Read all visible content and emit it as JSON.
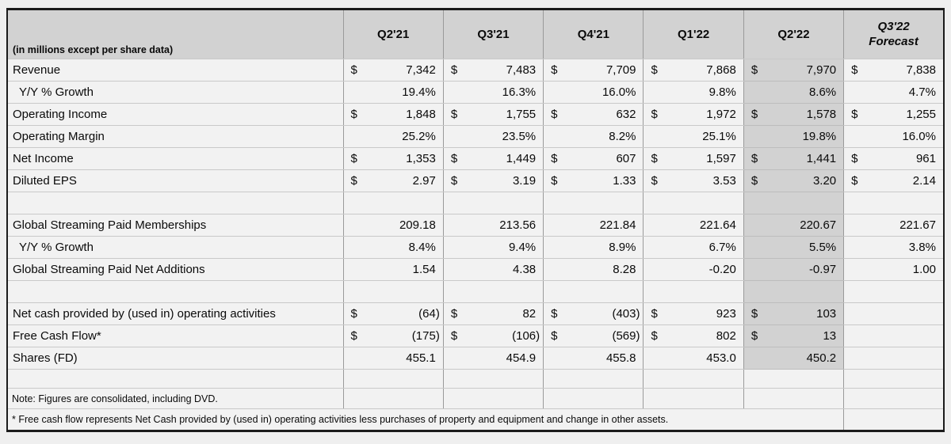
{
  "colors": {
    "page_bg": "#efefef",
    "cell_bg": "#f2f2f2",
    "header_bg": "#d2d2d2",
    "highlight_column_bg": "#d2d2d2",
    "outer_border": "#1b1b1b",
    "text": "#0a0a0a"
  },
  "table": {
    "unit_note": "(in millions except per share data)",
    "currency_symbol": "$",
    "highlight_column": "Q2'22",
    "columns": [
      {
        "label": "Q2'21"
      },
      {
        "label": "Q3'21"
      },
      {
        "label": "Q4'21"
      },
      {
        "label": "Q1'22"
      },
      {
        "label": "Q2'22"
      },
      {
        "label": "Q3'22",
        "sublabel": "Forecast"
      }
    ],
    "rows": [
      {
        "type": "data",
        "label": "Revenue",
        "dollar": true,
        "shaded": true,
        "values": [
          "7,342",
          "7,483",
          "7,709",
          "7,868",
          "7,970",
          "7,838"
        ]
      },
      {
        "type": "data",
        "label": "Y/Y % Growth",
        "indent": true,
        "shaded": true,
        "values": [
          "19.4%",
          "16.3%",
          "16.0%",
          "9.8%",
          "8.6%",
          "4.7%"
        ]
      },
      {
        "type": "data",
        "label": "Operating Income",
        "dollar": true,
        "shaded": true,
        "values": [
          "1,848",
          "1,755",
          "632",
          "1,972",
          "1,578",
          "1,255"
        ]
      },
      {
        "type": "data",
        "label": "Operating Margin",
        "shaded": true,
        "values": [
          "25.2%",
          "23.5%",
          "8.2%",
          "25.1%",
          "19.8%",
          "16.0%"
        ]
      },
      {
        "type": "data",
        "label": "Net Income",
        "dollar": true,
        "shaded": true,
        "values": [
          "1,353",
          "1,449",
          "607",
          "1,597",
          "1,441",
          "961"
        ]
      },
      {
        "type": "data",
        "label": "Diluted EPS",
        "dollar": true,
        "shaded": true,
        "values": [
          "2.97",
          "3.19",
          "1.33",
          "3.53",
          "3.20",
          "2.14"
        ]
      },
      {
        "type": "blank",
        "shaded": true
      },
      {
        "type": "data",
        "label": "Global Streaming Paid Memberships",
        "shaded": true,
        "values": [
          "209.18",
          "213.56",
          "221.84",
          "221.64",
          "220.67",
          "221.67"
        ]
      },
      {
        "type": "data",
        "label": "Y/Y % Growth",
        "indent": true,
        "shaded": true,
        "values": [
          "8.4%",
          "9.4%",
          "8.9%",
          "6.7%",
          "5.5%",
          "3.8%"
        ]
      },
      {
        "type": "data",
        "label": "Global Streaming Paid Net Additions",
        "shaded": true,
        "values": [
          "1.54",
          "4.38",
          "8.28",
          "-0.20",
          "-0.97",
          "1.00"
        ]
      },
      {
        "type": "blank",
        "shaded": true
      },
      {
        "type": "data",
        "label": "Net cash provided by (used in) operating activities",
        "dollar": true,
        "shaded": true,
        "values": [
          "(64)",
          "82",
          "(403)",
          "923",
          "103",
          ""
        ]
      },
      {
        "type": "data",
        "label": "Free Cash Flow*",
        "dollar": true,
        "shaded": true,
        "values": [
          "(175)",
          "(106)",
          "(569)",
          "802",
          "13",
          ""
        ]
      },
      {
        "type": "data",
        "label": "Shares (FD)",
        "shaded": true,
        "values": [
          "455.1",
          "454.9",
          "455.8",
          "453.0",
          "450.2",
          ""
        ]
      },
      {
        "type": "blank",
        "h": 24
      },
      {
        "type": "note"
      },
      {
        "type": "footnote"
      }
    ]
  },
  "notes": {
    "note": "Note: Figures are consolidated, including DVD.",
    "footnote": "* Free cash flow represents Net Cash provided by (used in) operating activities less purchases of property and equipment and change in other assets."
  }
}
